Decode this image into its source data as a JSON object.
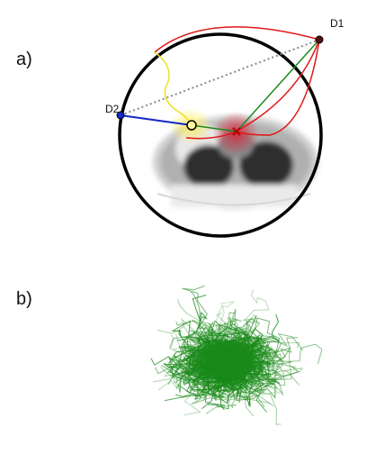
{
  "panels": {
    "a": {
      "label": "a)",
      "detectors": [
        "D1",
        "D2"
      ]
    },
    "b": {
      "label": "b)"
    }
  }
}
